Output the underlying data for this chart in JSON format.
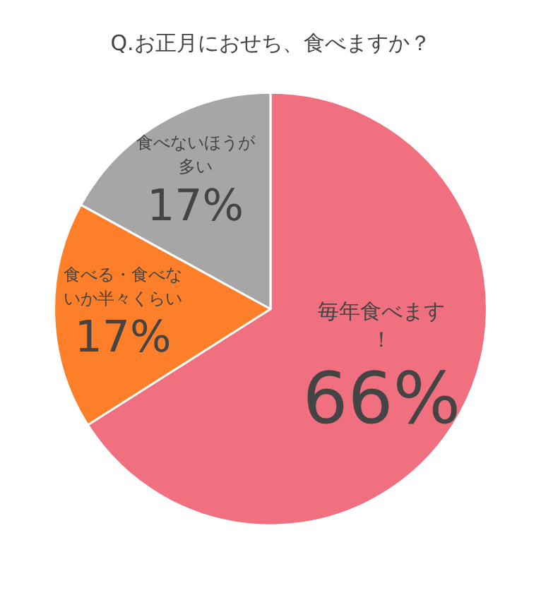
{
  "chart_data": {
    "type": "pie",
    "title": "Q.お正月におせち、食べますか？",
    "categories": [
      "毎年食べます！",
      "食べる・食べないか半々くらい",
      "食べないほうが多い"
    ],
    "values": [
      66,
      17,
      17
    ],
    "colors": [
      "#f07080",
      "#fd7f2a",
      "#a6a6a6"
    ],
    "value_labels": [
      "66%",
      "17%",
      "17%"
    ],
    "legend": false
  }
}
